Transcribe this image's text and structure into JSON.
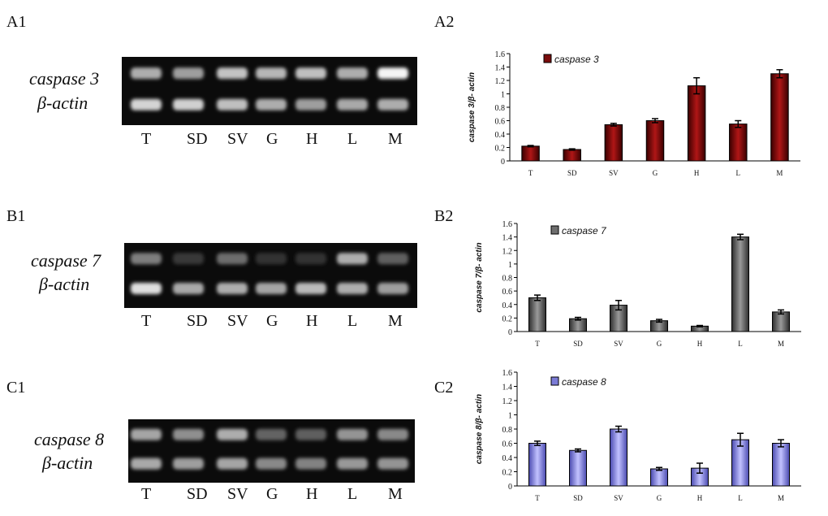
{
  "gels": [
    {
      "panel": "A1",
      "gene": "caspase 3",
      "control": "β-actin",
      "lanes": [
        "T",
        "SD",
        "SV",
        "G",
        "H",
        "L",
        "M"
      ],
      "band_top": [
        0.62,
        0.55,
        0.72,
        0.66,
        0.7,
        0.62,
        0.95
      ],
      "band_bottom": [
        0.8,
        0.78,
        0.7,
        0.62,
        0.55,
        0.6,
        0.62
      ]
    },
    {
      "panel": "B1",
      "gene": "caspase 7",
      "control": "β-actin",
      "lanes": [
        "T",
        "SD",
        "SV",
        "G",
        "H",
        "L",
        "M"
      ],
      "band_top": [
        0.4,
        0.08,
        0.32,
        0.04,
        0.04,
        0.62,
        0.25
      ],
      "band_bottom": [
        0.85,
        0.6,
        0.62,
        0.58,
        0.68,
        0.62,
        0.55
      ]
    },
    {
      "panel": "C1",
      "gene": "caspase 8",
      "control": "β-actin",
      "lanes": [
        "T",
        "SD",
        "SV",
        "G",
        "H",
        "L",
        "M"
      ],
      "band_top": [
        0.58,
        0.48,
        0.62,
        0.28,
        0.25,
        0.5,
        0.45
      ],
      "band_bottom": [
        0.6,
        0.55,
        0.58,
        0.45,
        0.42,
        0.52,
        0.5
      ]
    }
  ],
  "chart_data": [
    {
      "panel": "A2",
      "type": "bar",
      "categories": [
        "T",
        "SD",
        "SV",
        "G",
        "H",
        "L",
        "M"
      ],
      "values": [
        0.22,
        0.17,
        0.54,
        0.6,
        1.12,
        0.55,
        1.3
      ],
      "errors": [
        0.01,
        0.01,
        0.02,
        0.03,
        0.12,
        0.05,
        0.06
      ],
      "legend": "caspase 3",
      "ylabel": "caspase 3/β- actin",
      "ylim": [
        0,
        1.6
      ],
      "yticks": [
        "0",
        "0.2",
        "0.4",
        "0.6",
        "0.8",
        "1",
        "1.2",
        "1.4",
        "1.6"
      ],
      "color": "#7a0c0c"
    },
    {
      "panel": "B2",
      "type": "bar",
      "categories": [
        "T",
        "SD",
        "SV",
        "G",
        "H",
        "L",
        "M"
      ],
      "values": [
        0.5,
        0.19,
        0.39,
        0.16,
        0.08,
        1.4,
        0.29
      ],
      "errors": [
        0.04,
        0.02,
        0.07,
        0.02,
        0.01,
        0.04,
        0.03
      ],
      "legend": "caspase 7",
      "ylabel": "caspase 7/β- actin",
      "ylim": [
        0,
        1.6
      ],
      "yticks": [
        "0",
        "0.2",
        "0.4",
        "0.6",
        "0.8",
        "1",
        "1.2",
        "1.4",
        "1.6"
      ],
      "color": "#6e6e6e"
    },
    {
      "panel": "C2",
      "type": "bar",
      "categories": [
        "T",
        "SD",
        "SV",
        "G",
        "H",
        "L",
        "M"
      ],
      "values": [
        0.6,
        0.5,
        0.8,
        0.24,
        0.25,
        0.65,
        0.6
      ],
      "errors": [
        0.03,
        0.02,
        0.04,
        0.02,
        0.07,
        0.09,
        0.05
      ],
      "legend": "caspase 8",
      "ylabel": "caspase 8/β- actin",
      "ylim": [
        0,
        1.6
      ],
      "yticks": [
        "0",
        "0.2",
        "0.4",
        "0.6",
        "0.8",
        "1",
        "1.2",
        "1.4",
        "1.6"
      ],
      "color": "#7b7bd6"
    }
  ]
}
